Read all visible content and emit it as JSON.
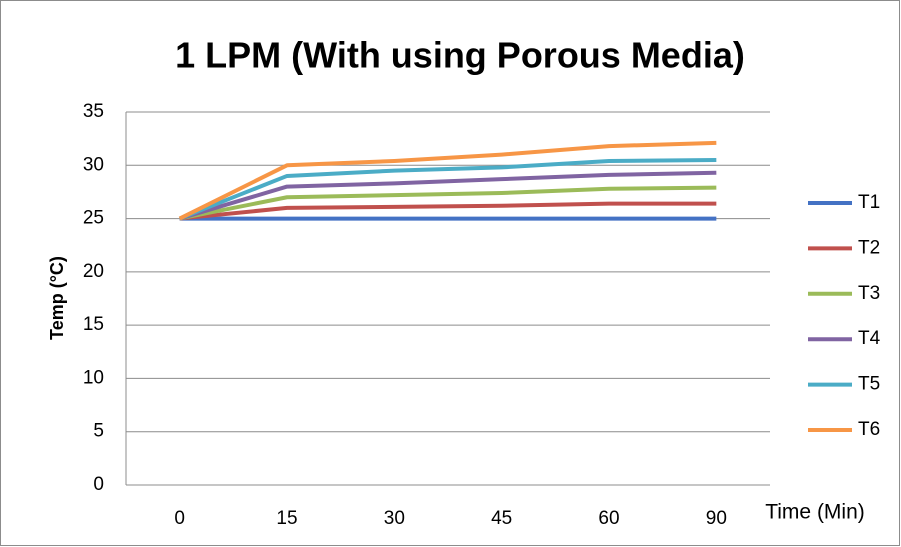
{
  "chart_data": {
    "type": "line",
    "title": "1 LPM (With using Porous Media)",
    "x_label": "Time (Min)",
    "y_label": "Temp (°C)",
    "categories": [
      "0",
      "15",
      "30",
      "45",
      "60",
      "90"
    ],
    "series": [
      {
        "name": "T1",
        "color": "#4472c4",
        "values": [
          25,
          25,
          25,
          25,
          25,
          25
        ]
      },
      {
        "name": "T2",
        "color": "#c0504d",
        "values": [
          25,
          26,
          26.1,
          26.2,
          26.4,
          26.4
        ]
      },
      {
        "name": "T3",
        "color": "#9bbb59",
        "values": [
          25,
          27,
          27.2,
          27.4,
          27.8,
          27.9
        ]
      },
      {
        "name": "T4",
        "color": "#8064a2",
        "values": [
          25,
          28,
          28.3,
          28.7,
          29.1,
          29.3
        ]
      },
      {
        "name": "T5",
        "color": "#4bacc6",
        "values": [
          25,
          29,
          29.5,
          29.8,
          30.4,
          30.5
        ]
      },
      {
        "name": "T6",
        "color": "#f79646",
        "values": [
          25,
          30,
          30.4,
          31,
          31.8,
          32.1
        ]
      }
    ],
    "ylim": [
      0,
      35
    ],
    "yticks": [
      0,
      5,
      10,
      15,
      20,
      25,
      30,
      35
    ],
    "grid": true,
    "legend": "right"
  }
}
